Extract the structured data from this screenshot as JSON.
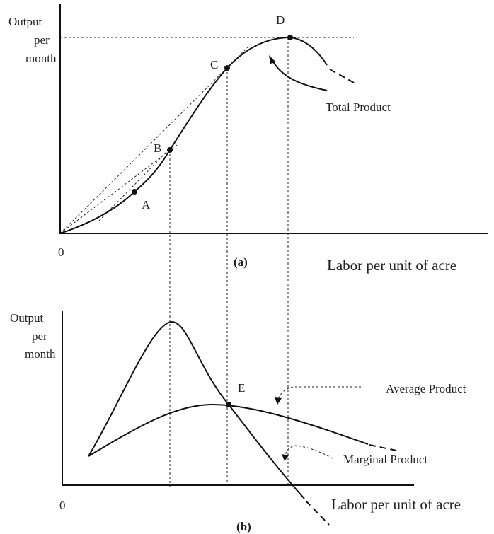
{
  "panels": [
    {
      "y_label": [
        "Output",
        "per",
        "month"
      ],
      "origin": "0",
      "caption": "(a)",
      "x_label": "Labor per unit of acre",
      "points": [
        "A",
        "B",
        "C",
        "D"
      ],
      "curve_labels": [
        "Total Product"
      ]
    },
    {
      "y_label": [
        "Output",
        "per",
        "month"
      ],
      "origin": "0",
      "caption": "(b)",
      "x_label": "Labor per unit of acre",
      "points": [
        "E"
      ],
      "curve_labels": [
        "Average Product",
        "Marginal Product"
      ]
    }
  ]
}
